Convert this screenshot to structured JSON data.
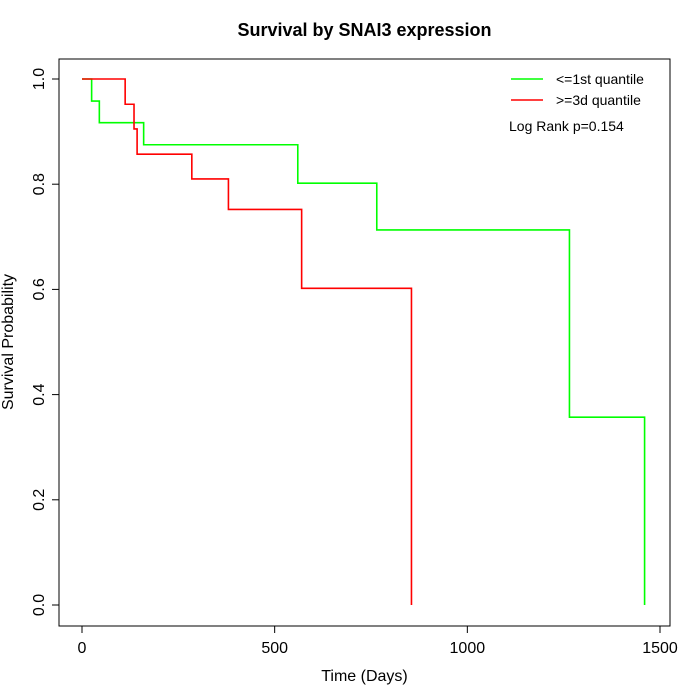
{
  "chart_data": {
    "type": "line",
    "title": "Survival by SNAI3 expression",
    "xlabel": "Time (Days)",
    "ylabel": "Survival Probability",
    "xlim": [
      0,
      1500
    ],
    "ylim": [
      0,
      1
    ],
    "x_ticks": [
      0,
      500,
      1000,
      1500
    ],
    "x_tick_labels": [
      "0",
      "500",
      "1000",
      "1500"
    ],
    "y_ticks": [
      0,
      0.2,
      0.4,
      0.6,
      0.8,
      1
    ],
    "y_tick_labels": [
      "0.0",
      "0.2",
      "0.4",
      "0.6",
      "0.8",
      "1.0"
    ],
    "grid": false,
    "legend_position": "top-right",
    "annotation": "Log Rank p=0.154",
    "series": [
      {
        "name": "<=1st quantile",
        "color": "#00ff00",
        "step_x": [
          0,
          25,
          45,
          160,
          560,
          765,
          1265,
          1460
        ],
        "step_y": [
          1.0,
          0.958,
          0.917,
          0.875,
          0.802,
          0.713,
          0.357,
          0.0
        ]
      },
      {
        "name": ">=3d quantile",
        "color": "#ff0000",
        "step_x": [
          0,
          112,
          135,
          143,
          285,
          380,
          570,
          855
        ],
        "step_y": [
          1.0,
          0.952,
          0.905,
          0.857,
          0.81,
          0.752,
          0.602,
          0.0
        ]
      }
    ]
  }
}
